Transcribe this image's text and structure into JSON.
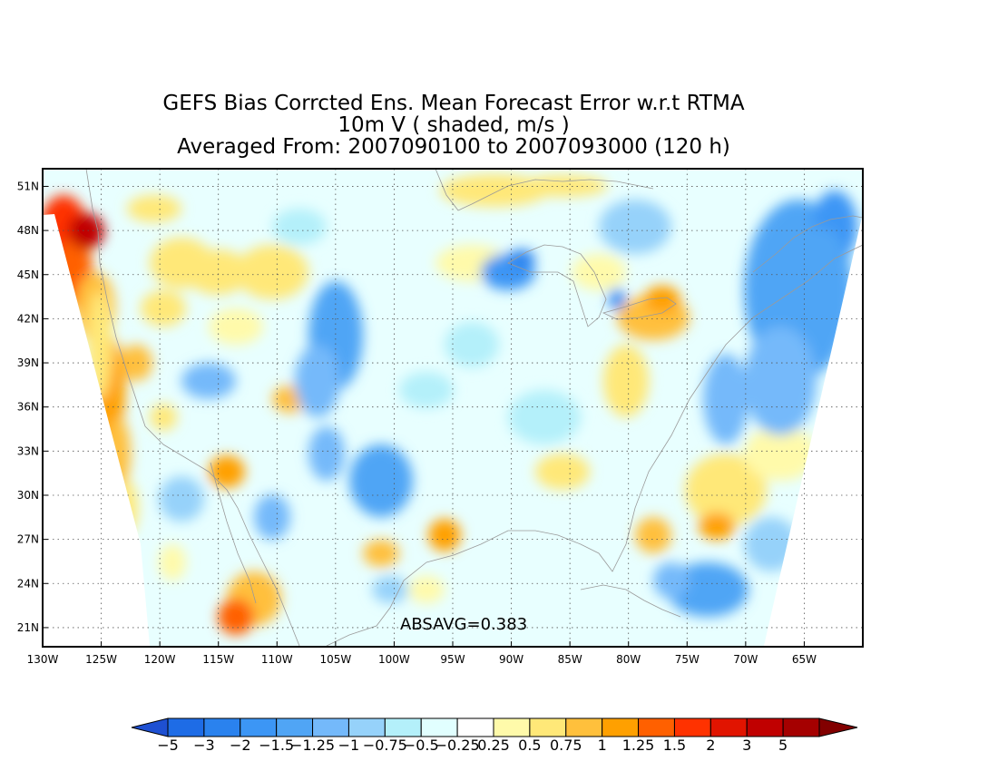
{
  "title": {
    "line1": "GEFS Bias Corrcted Ens. Mean Forecast Error w.r.t RTMA",
    "line2": "10m V ( shaded, m/s )",
    "line3": "Averaged From: 2007090100 to 2007093000 (120 h)"
  },
  "map": {
    "lon_range": [
      -130,
      -60
    ],
    "lat_range": [
      19.7,
      52.2
    ],
    "lat_ticks": [
      {
        "value": 51,
        "label": "51N"
      },
      {
        "value": 48,
        "label": "48N"
      },
      {
        "value": 45,
        "label": "45N"
      },
      {
        "value": 42,
        "label": "42N"
      },
      {
        "value": 39,
        "label": "39N"
      },
      {
        "value": 36,
        "label": "36N"
      },
      {
        "value": 33,
        "label": "33N"
      },
      {
        "value": 30,
        "label": "30N"
      },
      {
        "value": 27,
        "label": "27N"
      },
      {
        "value": 24,
        "label": "24N"
      },
      {
        "value": 21,
        "label": "21N"
      }
    ],
    "lon_ticks": [
      {
        "value": -130,
        "label": "130W"
      },
      {
        "value": -125,
        "label": "125W"
      },
      {
        "value": -120,
        "label": "120W"
      },
      {
        "value": -115,
        "label": "115W"
      },
      {
        "value": -110,
        "label": "110W"
      },
      {
        "value": -105,
        "label": "105W"
      },
      {
        "value": -100,
        "label": "100W"
      },
      {
        "value": -95,
        "label": "95W"
      },
      {
        "value": -90,
        "label": "90W"
      },
      {
        "value": -85,
        "label": "85W"
      },
      {
        "value": -80,
        "label": "80W"
      },
      {
        "value": -75,
        "label": "75W"
      },
      {
        "value": -70,
        "label": "70W"
      },
      {
        "value": -65,
        "label": "65W"
      }
    ],
    "annotation": "ABSAVG=0.383",
    "grid": "dotted"
  },
  "colorbar": {
    "colors": [
      "#1e6ce6",
      "#2a82ee",
      "#3c96f5",
      "#50a5f5",
      "#74b9fa",
      "#96d2fa",
      "#b4f0fa",
      "#e1ffff",
      "#ffffff",
      "#fffaaa",
      "#ffe878",
      "#ffc03c",
      "#ffa000",
      "#ff6000",
      "#ff3200",
      "#e11400",
      "#c00000",
      "#a50000"
    ],
    "labels": [
      "−5",
      "−3",
      "−2",
      "−1.5",
      "−1.25",
      "−1",
      "−0.75",
      "−0.5",
      "−0.25",
      "0.25",
      "0.5",
      "0.75",
      "1",
      "1.25",
      "1.5",
      "2",
      "3",
      "5"
    ]
  }
}
